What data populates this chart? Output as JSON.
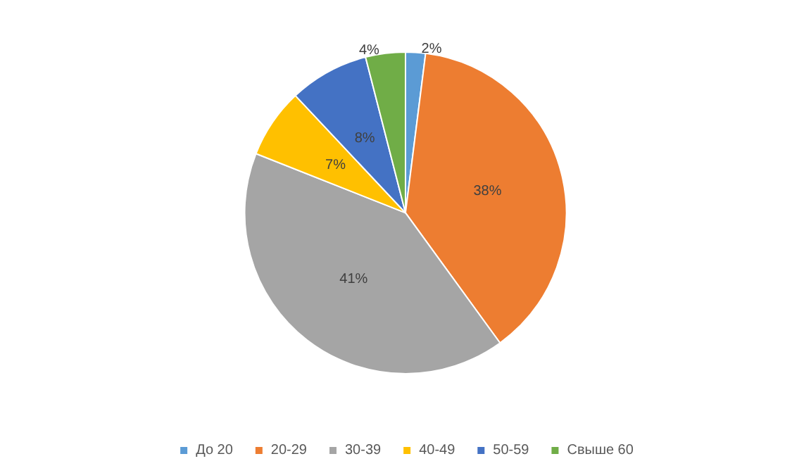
{
  "chart_data": {
    "type": "pie",
    "categories": [
      "До 20",
      "20-29",
      "30-39",
      "40-49",
      "50-59",
      "Свыше 60"
    ],
    "values": [
      2,
      38,
      41,
      7,
      8,
      4
    ],
    "value_labels": [
      "2%",
      "38%",
      "41%",
      "7%",
      "8%",
      "4%"
    ],
    "colors": [
      "#5b9bd5",
      "#ed7d31",
      "#a5a5a5",
      "#ffc000",
      "#4472c4",
      "#70ad47"
    ],
    "legend": "bottom"
  }
}
